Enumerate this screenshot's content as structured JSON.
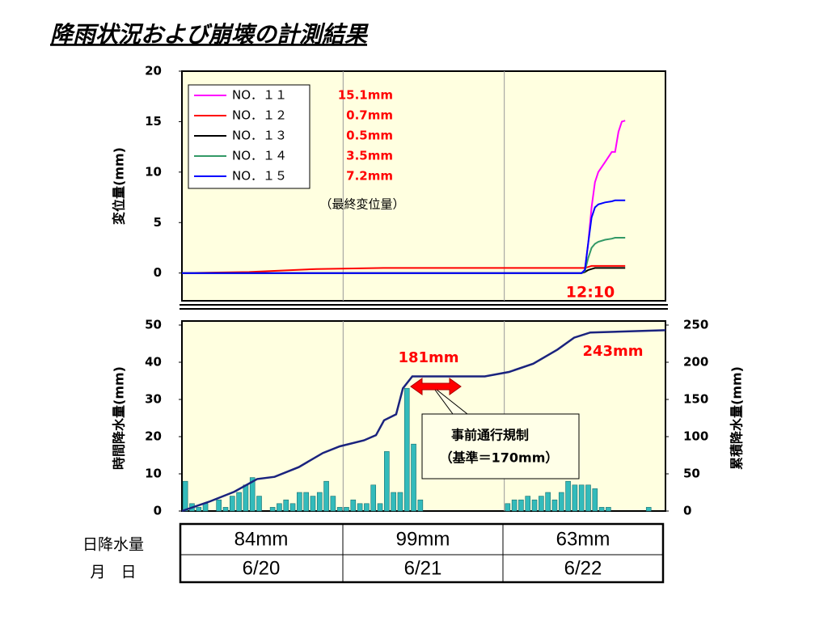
{
  "chart_data": [
    {
      "type": "line",
      "title": "降雨状況および崩壊の計測結果",
      "ylabel": "変位量(mm)",
      "x": [
        0,
        10,
        20,
        30,
        40,
        50,
        59.5,
        60,
        60.5,
        61,
        61.5,
        62,
        63,
        64,
        64.5,
        65,
        65.5,
        66
      ],
      "xlim": [
        0,
        72
      ],
      "xticks": [
        24,
        48
      ],
      "ylim": [
        -2.75,
        20
      ],
      "yticks": [
        0,
        5,
        10,
        15,
        20
      ],
      "grid": true,
      "legend": "upper left",
      "series": [
        {
          "name": "NO．１１",
          "color": "#ff00ff",
          "final_label": "15.1mm",
          "values": [
            0,
            0,
            0,
            0,
            0,
            0,
            0,
            0.3,
            3,
            6.5,
            9,
            10,
            11,
            12,
            12,
            14,
            15,
            15.1
          ]
        },
        {
          "name": "NO．１２",
          "color": "#ff0000",
          "final_label": "0.7mm",
          "values": [
            0,
            0.1,
            0.4,
            0.5,
            0.5,
            0.5,
            0.5,
            0.5,
            0.6,
            0.7,
            0.7,
            0.7,
            0.7,
            0.7,
            0.7,
            0.7,
            0.7,
            0.7
          ]
        },
        {
          "name": "NO．１３",
          "color": "#000000",
          "final_label": "0.5mm",
          "values": [
            0,
            0,
            0,
            0,
            0,
            0,
            0,
            0.1,
            0.3,
            0.4,
            0.5,
            0.5,
            0.5,
            0.5,
            0.5,
            0.5,
            0.5,
            0.5
          ]
        },
        {
          "name": "NO．１４",
          "color": "#339966",
          "final_label": "3.5mm",
          "values": [
            0,
            0,
            0,
            0,
            0,
            0,
            0,
            0.2,
            1.5,
            2.5,
            2.9,
            3.1,
            3.3,
            3.4,
            3.5,
            3.5,
            3.5,
            3.5
          ]
        },
        {
          "name": "NO．１５",
          "color": "#0000ff",
          "final_label": "7.2mm",
          "values": [
            0,
            0,
            0,
            0,
            0,
            0,
            0,
            0.3,
            3,
            5.5,
            6.5,
            6.8,
            7,
            7.1,
            7.2,
            7.2,
            7.2,
            7.2
          ]
        }
      ],
      "annotations": [
        "（最終変位量）",
        "12:10"
      ]
    },
    {
      "type": "bar",
      "ylabel": "時間降水量(mm)",
      "y2label": "累積降水量(mm)",
      "xlim": [
        0,
        72
      ],
      "xticks": [
        24,
        48
      ],
      "ylim": [
        0,
        50
      ],
      "yticks": [
        0,
        10,
        20,
        30,
        40,
        50
      ],
      "y2lim": [
        0,
        250
      ],
      "y2ticks": [
        0,
        50,
        100,
        150,
        200,
        250
      ],
      "grid": true,
      "series": [
        {
          "type": "bar",
          "color": "#33bbbb",
          "x": [
            0,
            1,
            2,
            3,
            4,
            5,
            6,
            7,
            8,
            9,
            10,
            11,
            12,
            13,
            14,
            15,
            16,
            17,
            18,
            19,
            20,
            21,
            22,
            23,
            24,
            25,
            26,
            27,
            28,
            29,
            30,
            31,
            32,
            33,
            34,
            35,
            36,
            37,
            38,
            39,
            40,
            41,
            42,
            43,
            44,
            45,
            46,
            47,
            48,
            49,
            50,
            51,
            52,
            53,
            54,
            55,
            56,
            57,
            58,
            59,
            60,
            61,
            62,
            63,
            64,
            65,
            66,
            67,
            68,
            69,
            70,
            71
          ],
          "values": [
            8,
            2,
            1,
            2,
            0,
            3,
            1,
            4,
            5,
            7,
            9,
            4,
            0,
            1,
            2,
            3,
            2,
            5,
            5,
            4,
            5,
            8,
            4,
            1,
            1,
            3,
            2,
            2,
            7,
            2,
            16,
            5,
            5,
            33,
            18,
            3,
            0,
            0,
            0,
            0,
            0,
            0,
            0,
            0,
            0,
            0,
            0,
            0,
            2,
            3,
            3,
            4,
            3,
            4,
            5,
            3,
            5,
            8,
            7,
            7,
            7,
            6,
            1,
            1,
            0,
            0,
            0,
            0,
            0,
            1,
            0,
            0
          ]
        },
        {
          "type": "line",
          "axis": "y2",
          "color": "#1a237e",
          "x": [
            0,
            4.2,
            7.8,
            11.2,
            13.8,
            17.4,
            21,
            23.5,
            27.1,
            28.9,
            30.1,
            31.9,
            32.9,
            34.3,
            45.1,
            48.7,
            52.3,
            55.9,
            58.4,
            60.8,
            72
          ],
          "values": [
            0,
            13,
            26,
            43,
            46,
            59,
            78,
            87,
            95,
            102,
            122,
            130,
            165,
            181,
            181,
            187,
            198,
            217,
            233,
            240,
            243
          ]
        }
      ],
      "annotations": [
        "181mm",
        "243mm",
        "事前通行規制",
        "（基準＝170mm）"
      ]
    }
  ],
  "table": {
    "rows": [
      [
        "日降水量",
        "84mm",
        "99mm",
        "63mm"
      ],
      [
        "月　日",
        "6/20",
        "6/21",
        "6/22"
      ]
    ]
  }
}
